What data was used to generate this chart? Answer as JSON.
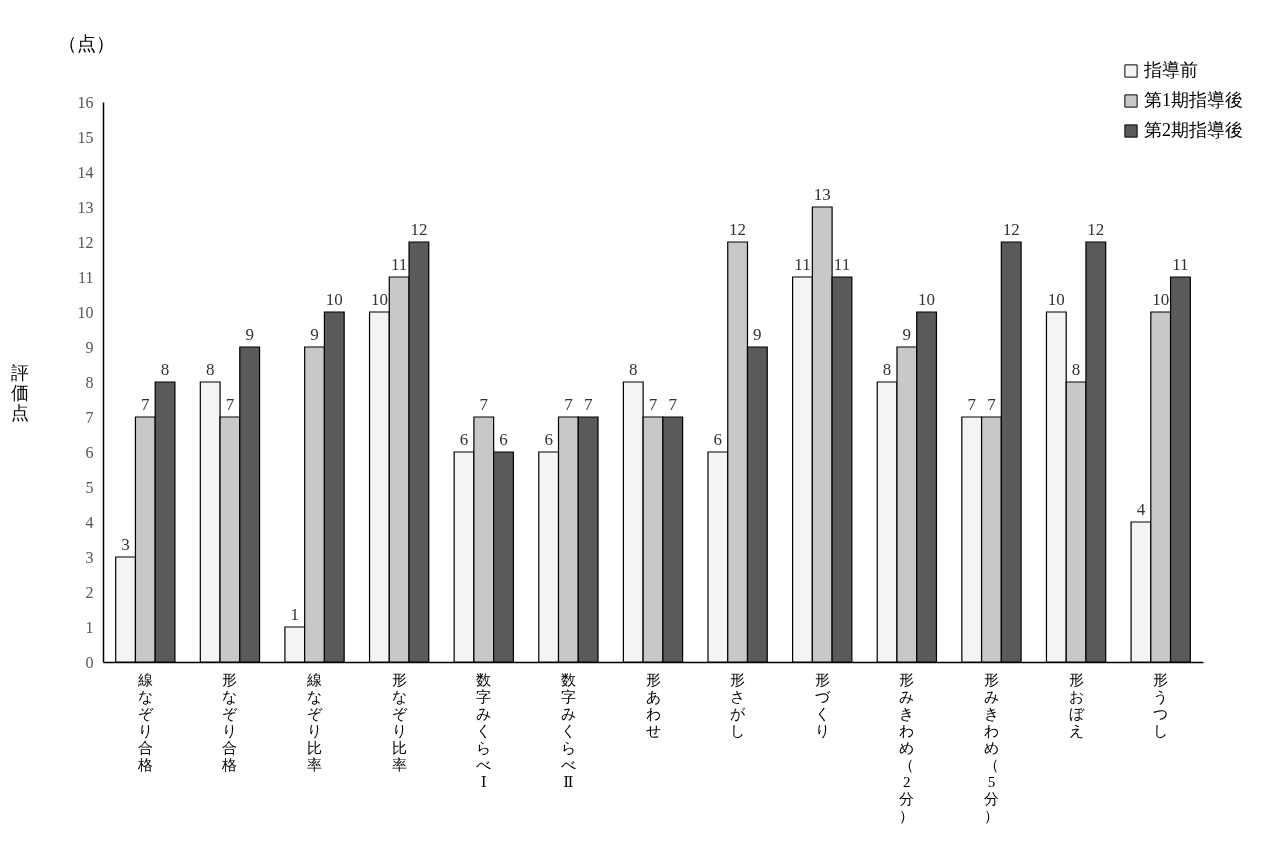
{
  "chart_data": {
    "type": "bar",
    "ylabel": "評価点",
    "annotations": [
      "（点）"
    ],
    "categories": [
      "線なぞり合格",
      "形なぞり合格",
      "線なぞり比率",
      "形なぞり比率",
      "数字みくらべⅠ",
      "数字みくらべⅡ",
      "形あわせ",
      "形さがし",
      "形づくり",
      "形みきわめ（2分）",
      "形みきわめ（5分）",
      "形おぼえ",
      "形うつし"
    ],
    "series": [
      {
        "name": "指導前",
        "color": "#f4f4f4",
        "values": [
          3,
          8,
          1,
          10,
          6,
          6,
          8,
          6,
          11,
          8,
          7,
          10,
          4
        ]
      },
      {
        "name": "第1期指導後",
        "color": "#c8c8c8",
        "values": [
          7,
          7,
          9,
          11,
          7,
          7,
          7,
          12,
          13,
          9,
          7,
          8,
          10
        ]
      },
      {
        "name": "第2期指導後",
        "color": "#5a5a5a",
        "values": [
          8,
          9,
          10,
          12,
          6,
          7,
          7,
          9,
          11,
          10,
          12,
          12,
          11
        ]
      }
    ],
    "ylim": [
      0,
      16
    ],
    "yticks": [
      0,
      1,
      2,
      3,
      4,
      5,
      6,
      7,
      8,
      9,
      10,
      11,
      12,
      13,
      14,
      15,
      16
    ],
    "data_labels": true,
    "legend": "top right",
    "grid": false
  }
}
